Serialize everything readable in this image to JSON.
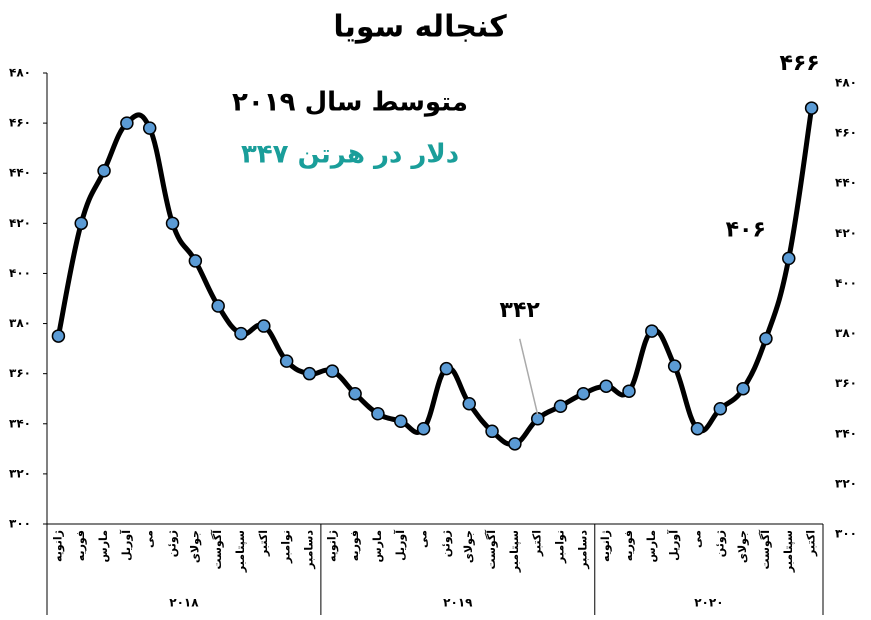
{
  "chart_data": {
    "type": "line",
    "title": "کنجاله سویا",
    "annotations": [
      "متوسط سال ۲۰۱۹",
      "۳۴۷ دلار در هرتن"
    ],
    "annotation_colors": [
      "#000000",
      "#1a9e9a"
    ],
    "categories": [
      "ژانویه",
      "فوریه",
      "مارس",
      "آوریل",
      "می",
      "ژوئن",
      "جولای",
      "آگوست",
      "سپتامبر",
      "اکتبر",
      "نوامبر",
      "دسامبر",
      "ژانویه",
      "فوریه",
      "مارس",
      "آوریل",
      "می",
      "ژوئن",
      "جولای",
      "آگوست",
      "سپتامبر",
      "اکتبر",
      "نوامبر",
      "دسامبر",
      "ژانویه",
      "فوریه",
      "مارس",
      "آوریل",
      "می",
      "ژوئن",
      "جولای",
      "آگوست",
      "سپتامبر",
      "اکتبر"
    ],
    "groups": [
      {
        "label": "۲۰۱۸",
        "count": 12
      },
      {
        "label": "۲۰۱۹",
        "count": 12
      },
      {
        "label": "۲۰۲۰",
        "count": 10
      }
    ],
    "series": [
      {
        "color": "#000000",
        "marker_color": "#5b9bd5",
        "values": [
          375,
          420,
          441,
          460,
          458,
          420,
          405,
          387,
          376,
          379,
          365,
          360,
          361,
          352,
          344,
          341,
          338,
          362,
          348,
          337,
          332,
          342,
          347,
          352,
          355,
          353,
          377,
          363,
          338,
          346,
          354,
          374,
          406,
          466
        ],
        "value_labels": [
          null,
          null,
          null,
          null,
          null,
          null,
          null,
          null,
          null,
          null,
          null,
          null,
          null,
          null,
          null,
          null,
          null,
          null,
          null,
          null,
          null,
          "۳۴۲",
          null,
          null,
          null,
          null,
          null,
          null,
          null,
          null,
          null,
          null,
          "۴۰۶",
          "۴۶۶"
        ]
      }
    ],
    "ylim": [
      300,
      480
    ],
    "yticks": [
      {
        "value": 300,
        "label": "۳۰۰"
      },
      {
        "value": 320,
        "label": "۳۲۰"
      },
      {
        "value": 340,
        "label": "۳۴۰"
      },
      {
        "value": 360,
        "label": "۳۶۰"
      },
      {
        "value": 380,
        "label": "۳۸۰"
      },
      {
        "value": 400,
        "label": "۴۰۰"
      },
      {
        "value": 420,
        "label": "۴۲۰"
      },
      {
        "value": 440,
        "label": "۴۴۰"
      },
      {
        "value": 460,
        "label": "۴۶۰"
      },
      {
        "value": 480,
        "label": "۴۸۰"
      }
    ],
    "right_axis_labels": true
  }
}
